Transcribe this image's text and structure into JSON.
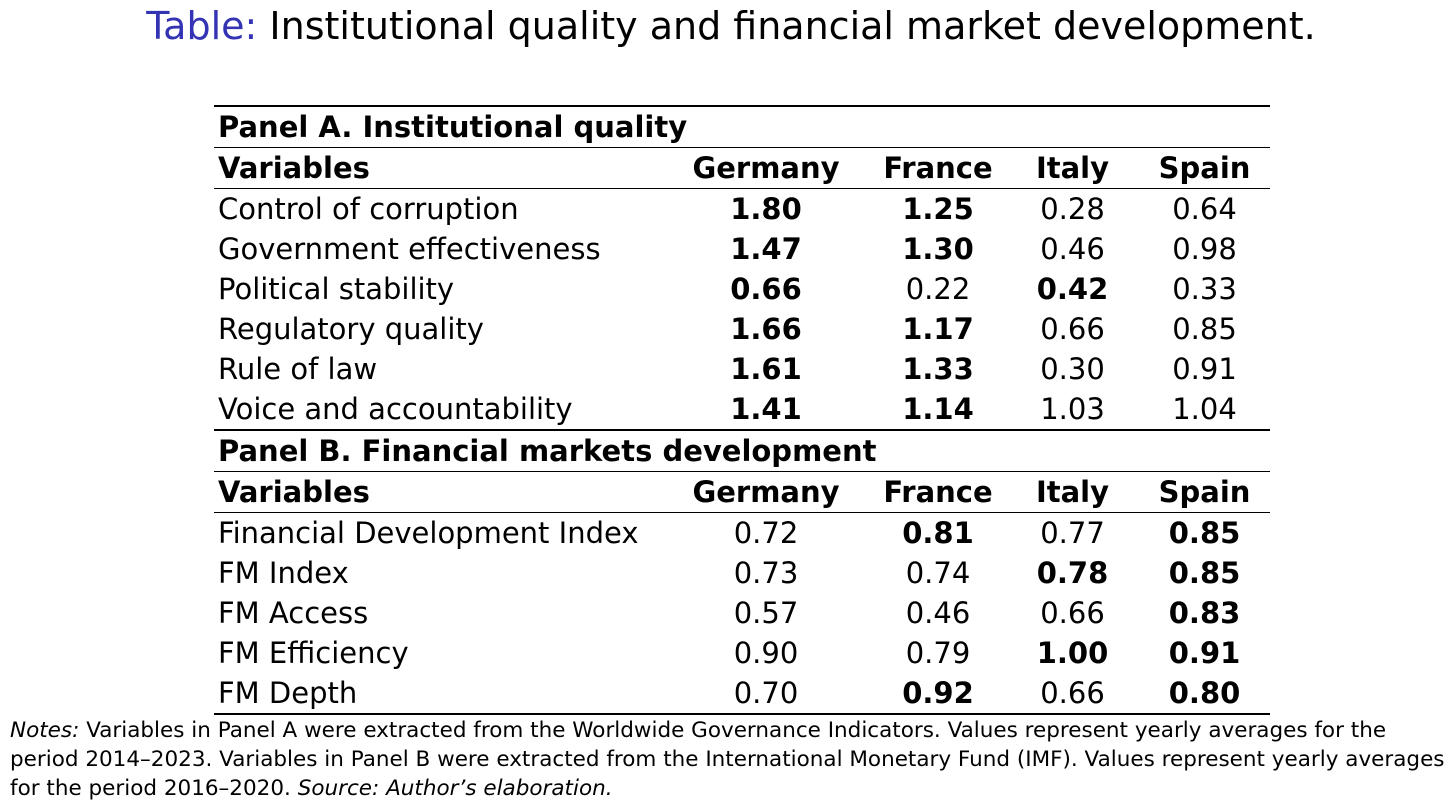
{
  "title": {
    "label": "Table:",
    "text": "Institutional quality and financial market development."
  },
  "table": {
    "columns": [
      "Variables",
      "Germany",
      "France",
      "Italy",
      "Spain"
    ],
    "panels": [
      {
        "title": "Panel A. Institutional quality",
        "rows": [
          {
            "label": "Control of corruption",
            "values": [
              "1.80",
              "1.25",
              "0.28",
              "0.64"
            ],
            "bold": [
              true,
              true,
              false,
              false
            ]
          },
          {
            "label": "Government effectiveness",
            "values": [
              "1.47",
              "1.30",
              "0.46",
              "0.98"
            ],
            "bold": [
              true,
              true,
              false,
              false
            ]
          },
          {
            "label": "Political stability",
            "values": [
              "0.66",
              "0.22",
              "0.42",
              "0.33"
            ],
            "bold": [
              true,
              false,
              true,
              false
            ]
          },
          {
            "label": "Regulatory quality",
            "values": [
              "1.66",
              "1.17",
              "0.66",
              "0.85"
            ],
            "bold": [
              true,
              true,
              false,
              false
            ]
          },
          {
            "label": "Rule of law",
            "values": [
              "1.61",
              "1.33",
              "0.30",
              "0.91"
            ],
            "bold": [
              true,
              true,
              false,
              false
            ]
          },
          {
            "label": "Voice and accountability",
            "values": [
              "1.41",
              "1.14",
              "1.03",
              "1.04"
            ],
            "bold": [
              true,
              true,
              false,
              false
            ]
          }
        ]
      },
      {
        "title": "Panel B. Financial markets development",
        "rows": [
          {
            "label": "Financial Development Index",
            "values": [
              "0.72",
              "0.81",
              "0.77",
              "0.85"
            ],
            "bold": [
              false,
              true,
              false,
              true
            ]
          },
          {
            "label": "FM Index",
            "values": [
              "0.73",
              "0.74",
              "0.78",
              "0.85"
            ],
            "bold": [
              false,
              false,
              true,
              true
            ]
          },
          {
            "label": "FM Access",
            "values": [
              "0.57",
              "0.46",
              "0.66",
              "0.83"
            ],
            "bold": [
              false,
              false,
              false,
              true
            ]
          },
          {
            "label": "FM Efficiency",
            "values": [
              "0.90",
              "0.79",
              "1.00",
              "0.91"
            ],
            "bold": [
              false,
              false,
              true,
              true
            ]
          },
          {
            "label": "FM Depth",
            "values": [
              "0.70",
              "0.92",
              "0.66",
              "0.80"
            ],
            "bold": [
              false,
              true,
              false,
              true
            ]
          }
        ]
      }
    ]
  },
  "notes": {
    "label": "Notes:",
    "text": "Variables in Panel A were extracted from the Worldwide Governance Indicators. Values represent yearly averages for the period 2014–2023. Variables in Panel B were extracted from the International Monetary Fund (IMF). Values represent yearly averages for the period 2016–2020.",
    "source": "Source: Author’s elaboration."
  },
  "colors": {
    "title_label": "#3333b3",
    "text": "#000000",
    "background": "#ffffff"
  }
}
